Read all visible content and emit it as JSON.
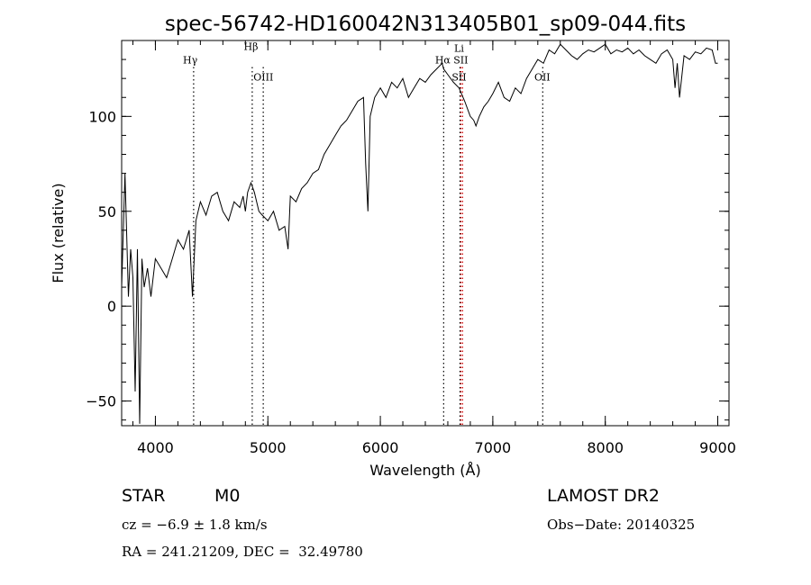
{
  "chart_data": {
    "type": "line",
    "title": "spec-56742-HD160042N313405B01_sp09-044.fits",
    "xlabel": "Wavelength (Å)",
    "ylabel": "Flux (relative)",
    "xlim": [
      3700,
      9100
    ],
    "ylim": [
      -63,
      140
    ],
    "x_ticks": [
      4000,
      5000,
      6000,
      7000,
      8000,
      9000
    ],
    "y_ticks": [
      -50,
      0,
      50,
      100
    ],
    "x_minor_step": 200,
    "y_minor_step": 10,
    "grid": false,
    "series": [
      {
        "color": "#000000",
        "x": [
          3700,
          3730,
          3760,
          3780,
          3800,
          3820,
          3840,
          3860,
          3880,
          3900,
          3930,
          3960,
          4000,
          4050,
          4100,
          4150,
          4200,
          4250,
          4300,
          4330,
          4360,
          4400,
          4450,
          4500,
          4550,
          4600,
          4650,
          4700,
          4750,
          4780,
          4800,
          4820,
          4850,
          4880,
          4900,
          4920,
          4950,
          5000,
          5050,
          5100,
          5150,
          5180,
          5200,
          5250,
          5300,
          5350,
          5400,
          5450,
          5500,
          5550,
          5600,
          5650,
          5700,
          5750,
          5800,
          5850,
          5870,
          5890,
          5910,
          5950,
          6000,
          6050,
          6100,
          6150,
          6200,
          6250,
          6300,
          6350,
          6400,
          6450,
          6500,
          6550,
          6563,
          6600,
          6650,
          6700,
          6750,
          6800,
          6830,
          6850,
          6880,
          6920,
          6960,
          7000,
          7050,
          7100,
          7150,
          7200,
          7250,
          7300,
          7350,
          7400,
          7450,
          7500,
          7550,
          7600,
          7650,
          7700,
          7750,
          7800,
          7850,
          7900,
          7950,
          8000,
          8050,
          8100,
          8150,
          8200,
          8250,
          8300,
          8350,
          8400,
          8450,
          8500,
          8550,
          8600,
          8620,
          8640,
          8660,
          8700,
          8750,
          8800,
          8850,
          8900,
          8950,
          8980,
          9000
        ],
        "y": [
          10,
          70,
          5,
          30,
          15,
          -45,
          30,
          -62,
          25,
          10,
          20,
          5,
          25,
          20,
          15,
          25,
          35,
          30,
          40,
          5,
          45,
          55,
          48,
          58,
          60,
          50,
          45,
          55,
          52,
          58,
          50,
          60,
          65,
          60,
          55,
          50,
          48,
          45,
          50,
          40,
          42,
          30,
          58,
          55,
          62,
          65,
          70,
          72,
          80,
          85,
          90,
          95,
          98,
          103,
          108,
          110,
          75,
          50,
          100,
          110,
          115,
          110,
          118,
          115,
          120,
          110,
          115,
          120,
          118,
          122,
          125,
          128,
          125,
          122,
          118,
          115,
          108,
          100,
          98,
          95,
          100,
          105,
          108,
          112,
          118,
          110,
          108,
          115,
          112,
          120,
          125,
          130,
          128,
          135,
          133,
          138,
          135,
          132,
          130,
          133,
          135,
          134,
          136,
          138,
          133,
          135,
          134,
          136,
          133,
          135,
          132,
          130,
          128,
          133,
          135,
          130,
          115,
          128,
          110,
          132,
          130,
          134,
          133,
          136,
          135,
          128,
          128
        ]
      }
    ],
    "lines": [
      {
        "label": "Hγ",
        "x": 4340,
        "color": "#000000",
        "label_x": 4310,
        "label_y": 128
      },
      {
        "label": "Hβ",
        "x": 4861,
        "color": "#000000",
        "label_x": 4850,
        "label_y": 135
      },
      {
        "label": "OIII",
        "x": 4959,
        "color": "#000000",
        "label_x": 4960,
        "label_y": 119
      },
      {
        "label": "Hα",
        "x": 6563,
        "color": "#000000",
        "label_x": 6555,
        "label_y": 128
      },
      {
        "label": "Li",
        "x": 6708,
        "color": "#000000",
        "label_x": 6700,
        "label_y": 134
      },
      {
        "label": "SII",
        "x": 6716,
        "color": "#cc0000",
        "label_x": 6715,
        "label_y": 128
      },
      {
        "label": "SII",
        "x": 6731,
        "color": "#cc0000",
        "label_x": 6700,
        "label_y": 119
      },
      {
        "label": "OII",
        "x": 7444,
        "color": "#000000",
        "label_x": 7440,
        "label_y": 119
      }
    ]
  },
  "info": {
    "class_label": "STAR",
    "subclass": "M0",
    "survey": "LAMOST DR2",
    "cz": "cz = −6.9 ± 1.8 km/s",
    "obs_date": "Obs−Date: 20140325",
    "radec": "RA = 241.21209, DEC =  32.49780"
  }
}
